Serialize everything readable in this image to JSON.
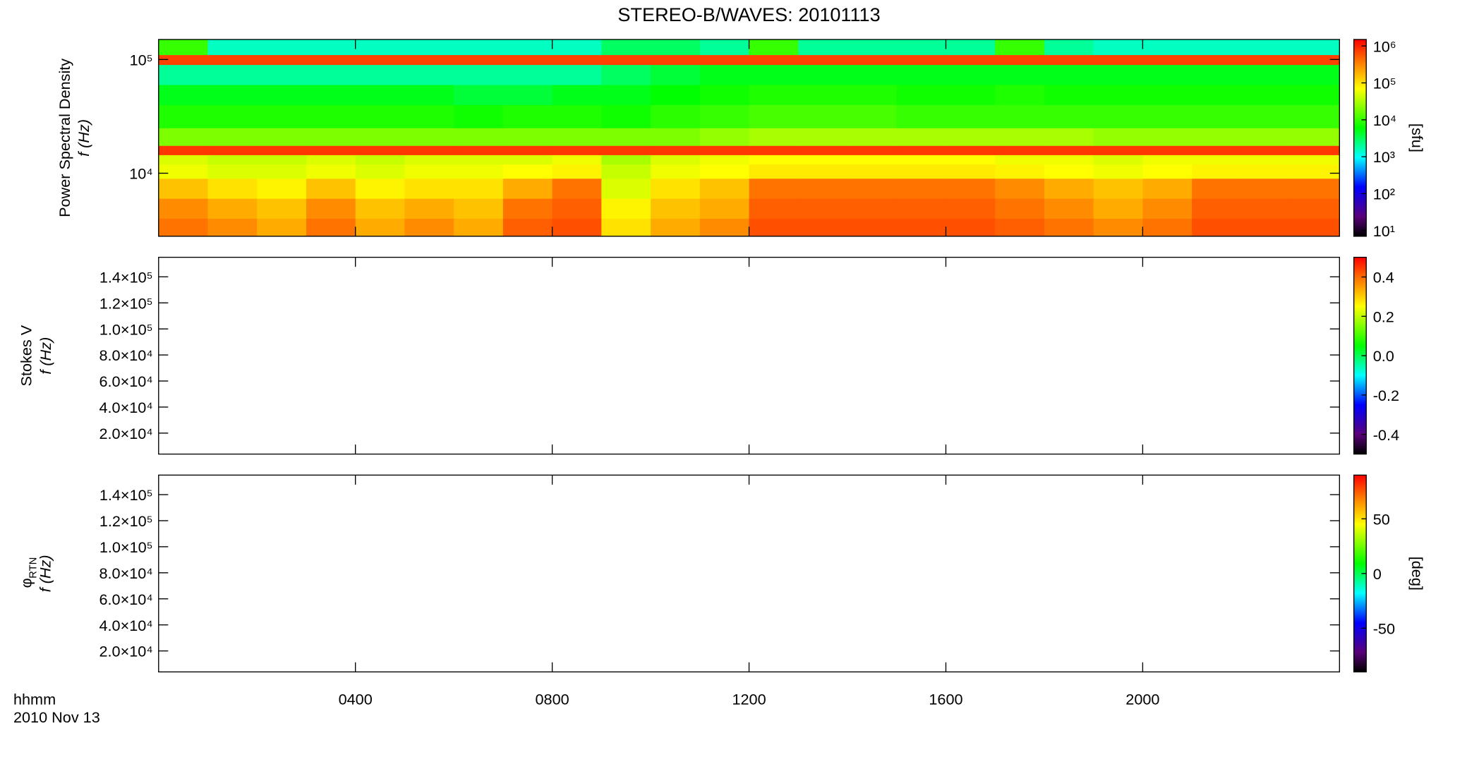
{
  "chart_data": [
    {
      "type": "heatmap",
      "title": "STEREO-B/WAVES: 20101113",
      "ylabel": "Power Spectral Density",
      "ylabel2": "f (Hz)",
      "ylog": true,
      "ylim": [
        2790,
        150000
      ],
      "yticks": [
        {
          "value": 100000,
          "label": "10⁵"
        },
        {
          "value": 10000,
          "label": "10⁴"
        }
      ],
      "xlim": [
        0,
        24
      ],
      "x_edges": [
        0,
        1,
        2,
        3,
        4,
        5,
        6,
        7,
        8,
        9,
        10,
        11,
        12,
        13,
        14,
        15,
        16,
        17,
        18,
        19,
        20,
        21,
        22,
        23,
        24
      ],
      "y_edges": [
        2790,
        4000,
        6000,
        9000,
        12000,
        14500,
        17500,
        25000,
        40000,
        60000,
        90000,
        110000,
        150000
      ],
      "z": [
        [
          400000,
          300000,
          200000,
          400000,
          200000,
          300000,
          200000,
          500000,
          600000,
          100000,
          200000,
          300000,
          600000,
          600000,
          600000,
          600000,
          600000,
          500000,
          400000,
          300000,
          400000,
          600000,
          600000,
          600000
        ],
        [
          300000,
          200000,
          150000,
          300000,
          150000,
          200000,
          150000,
          400000,
          500000,
          80000,
          150000,
          200000,
          500000,
          500000,
          500000,
          500000,
          500000,
          400000,
          300000,
          200000,
          300000,
          500000,
          500000,
          500000
        ],
        [
          150000,
          100000,
          80000,
          150000,
          80000,
          100000,
          100000,
          200000,
          400000,
          50000,
          100000,
          150000,
          400000,
          400000,
          400000,
          400000,
          400000,
          300000,
          200000,
          150000,
          200000,
          400000,
          400000,
          400000
        ],
        [
          60000,
          50000,
          50000,
          60000,
          50000,
          60000,
          60000,
          70000,
          80000,
          40000,
          60000,
          70000,
          90000,
          90000,
          90000,
          90000,
          90000,
          80000,
          70000,
          60000,
          70000,
          80000,
          80000,
          80000
        ],
        [
          50000,
          40000,
          40000,
          50000,
          40000,
          50000,
          50000,
          50000,
          60000,
          30000,
          50000,
          60000,
          70000,
          70000,
          70000,
          70000,
          70000,
          60000,
          60000,
          50000,
          60000,
          60000,
          60000,
          60000
        ],
        [
          800000,
          800000,
          800000,
          800000,
          800000,
          800000,
          800000,
          800000,
          800000,
          800000,
          800000,
          800000,
          800000,
          800000,
          800000,
          800000,
          800000,
          800000,
          800000,
          800000,
          800000,
          800000,
          800000,
          800000
        ],
        [
          20000,
          20000,
          20000,
          20000,
          20000,
          20000,
          20000,
          20000,
          20000,
          20000,
          20000,
          25000,
          30000,
          30000,
          30000,
          30000,
          30000,
          30000,
          30000,
          25000,
          25000,
          25000,
          25000,
          25000
        ],
        [
          8000,
          8000,
          8000,
          8000,
          8000,
          8000,
          7000,
          8000,
          8000,
          7000,
          9000,
          10000,
          12000,
          12000,
          12000,
          10000,
          10000,
          10000,
          10000,
          10000,
          10000,
          10000,
          10000,
          10000
        ],
        [
          5000,
          5000,
          5000,
          5000,
          5000,
          5000,
          4000,
          4000,
          5000,
          5000,
          6000,
          7000,
          8000,
          8000,
          8000,
          7000,
          7000,
          8000,
          7000,
          7000,
          7000,
          7000,
          7000,
          7000
        ],
        [
          2000,
          2000,
          2000,
          2000,
          2000,
          2000,
          2000,
          2000,
          2000,
          3000,
          4000,
          5000,
          5000,
          5000,
          5000,
          5000,
          5000,
          5000,
          5000,
          5000,
          5000,
          5000,
          5000,
          5000
        ],
        [
          700000,
          700000,
          700000,
          700000,
          700000,
          700000,
          700000,
          700000,
          700000,
          700000,
          700000,
          700000,
          700000,
          700000,
          700000,
          700000,
          700000,
          700000,
          700000,
          700000,
          700000,
          700000,
          700000,
          700000
        ],
        [
          10000,
          1500,
          1500,
          1500,
          1500,
          1500,
          1500,
          1500,
          1500,
          3000,
          3000,
          2000,
          10000,
          2000,
          2000,
          2000,
          2000,
          10000,
          2000,
          1500,
          1500,
          1500,
          1500,
          1500
        ]
      ],
      "colorbar": {
        "log": true,
        "lim": [
          7,
          1500000
        ],
        "ticks": [
          {
            "value": 1000000,
            "label": "10⁶"
          },
          {
            "value": 100000,
            "label": "10⁵"
          },
          {
            "value": 10000,
            "label": "10⁴"
          },
          {
            "value": 1000,
            "label": "10³"
          },
          {
            "value": 100,
            "label": "10²"
          },
          {
            "value": 10,
            "label": "10¹"
          }
        ],
        "label": "[sfu]"
      }
    },
    {
      "type": "heatmap",
      "ylabel": "Stokes V",
      "ylabel2": "f (Hz)",
      "ylog": false,
      "ylim": [
        3900,
        155000
      ],
      "yticks": [
        {
          "value": 140000,
          "label": "1.4×10⁵"
        },
        {
          "value": 120000,
          "label": "1.2×10⁵"
        },
        {
          "value": 100000,
          "label": "1.0×10⁵"
        },
        {
          "value": 80000,
          "label": "8.0×10⁴"
        },
        {
          "value": 60000,
          "label": "6.0×10⁴"
        },
        {
          "value": 40000,
          "label": "4.0×10⁴"
        },
        {
          "value": 20000,
          "label": "2.0×10⁴"
        }
      ],
      "xlim": [
        0,
        24
      ],
      "colorbar": {
        "log": false,
        "lim": [
          -0.5,
          0.5
        ],
        "ticks": [
          0.4,
          0.2,
          {
            "value": 0,
            "label": "0.0"
          },
          -0.2,
          -0.4
        ]
      }
    },
    {
      "type": "heatmap",
      "ylabel": "φ",
      "ylabel_sub": "RTN",
      "ylabel2": "f (Hz)",
      "ylog": false,
      "ylim": [
        3900,
        155000
      ],
      "yticks": [
        {
          "value": 140000,
          "label": "1.4×10⁵"
        },
        {
          "value": 120000,
          "label": "1.2×10⁵"
        },
        {
          "value": 100000,
          "label": "1.0×10⁵"
        },
        {
          "value": 80000,
          "label": "8.0×10⁴"
        },
        {
          "value": 60000,
          "label": "6.0×10⁴"
        },
        {
          "value": 40000,
          "label": "4.0×10⁴"
        },
        {
          "value": 20000,
          "label": "2.0×10⁴"
        }
      ],
      "xlim": [
        0,
        24
      ],
      "xticks": [
        {
          "value": 4,
          "label": "0400"
        },
        {
          "value": 8,
          "label": "0800"
        },
        {
          "value": 12,
          "label": "1200"
        },
        {
          "value": 16,
          "label": "1600"
        },
        {
          "value": 20,
          "label": "2000"
        }
      ],
      "xlabel": "hhmm",
      "date": "2010 Nov 13",
      "colorbar": {
        "log": false,
        "lim": [
          -90,
          90
        ],
        "ticks": [
          50,
          0,
          -50
        ],
        "label": "[deg]"
      }
    }
  ]
}
